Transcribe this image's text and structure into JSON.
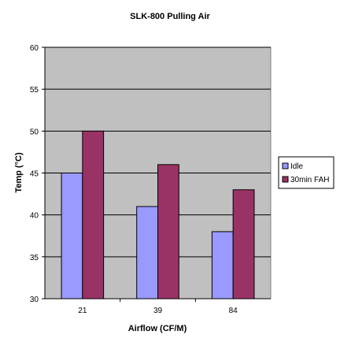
{
  "chart_data": {
    "type": "bar",
    "title": "SLK-800 Pulling Air",
    "xlabel": "Airflow (CF/M)",
    "ylabel": "Temp (°C)",
    "categories": [
      "21",
      "39",
      "84"
    ],
    "series": [
      {
        "name": "Idle",
        "values": [
          45,
          41,
          38
        ],
        "color": "#9999ff"
      },
      {
        "name": "30min FAH",
        "values": [
          50,
          46,
          43
        ],
        "color": "#993366"
      }
    ],
    "ylim": [
      30,
      60
    ],
    "yticks": [
      30,
      35,
      40,
      45,
      50,
      55,
      60
    ],
    "grid": true,
    "plot_background": "#c0c0c0",
    "legend_position": "right"
  }
}
